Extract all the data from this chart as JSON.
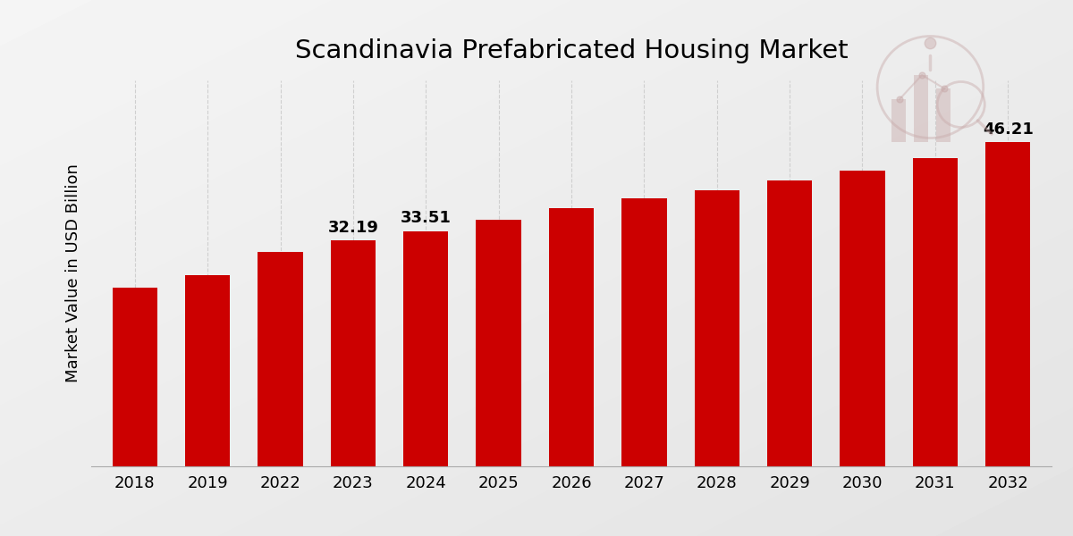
{
  "title": "Scandinavia Prefabricated Housing Market",
  "ylabel": "Market Value in USD Billion",
  "categories": [
    "2018",
    "2019",
    "2022",
    "2023",
    "2024",
    "2025",
    "2026",
    "2027",
    "2028",
    "2029",
    "2030",
    "2031",
    "2032"
  ],
  "values": [
    25.5,
    27.2,
    30.5,
    32.19,
    33.51,
    35.2,
    36.8,
    38.2,
    39.3,
    40.8,
    42.2,
    43.9,
    46.21
  ],
  "bar_color": "#CC0000",
  "label_indices": [
    3,
    4,
    12
  ],
  "labels": [
    "32.19",
    "33.51",
    "46.21"
  ],
  "title_fontsize": 21,
  "axis_label_fontsize": 13,
  "tick_fontsize": 13,
  "ylim": [
    0,
    55
  ],
  "grid_color": "#CCCCCC",
  "bar_width": 0.62,
  "bottom_bar_color": "#CC0000",
  "logo_color": "#C8AAAA"
}
